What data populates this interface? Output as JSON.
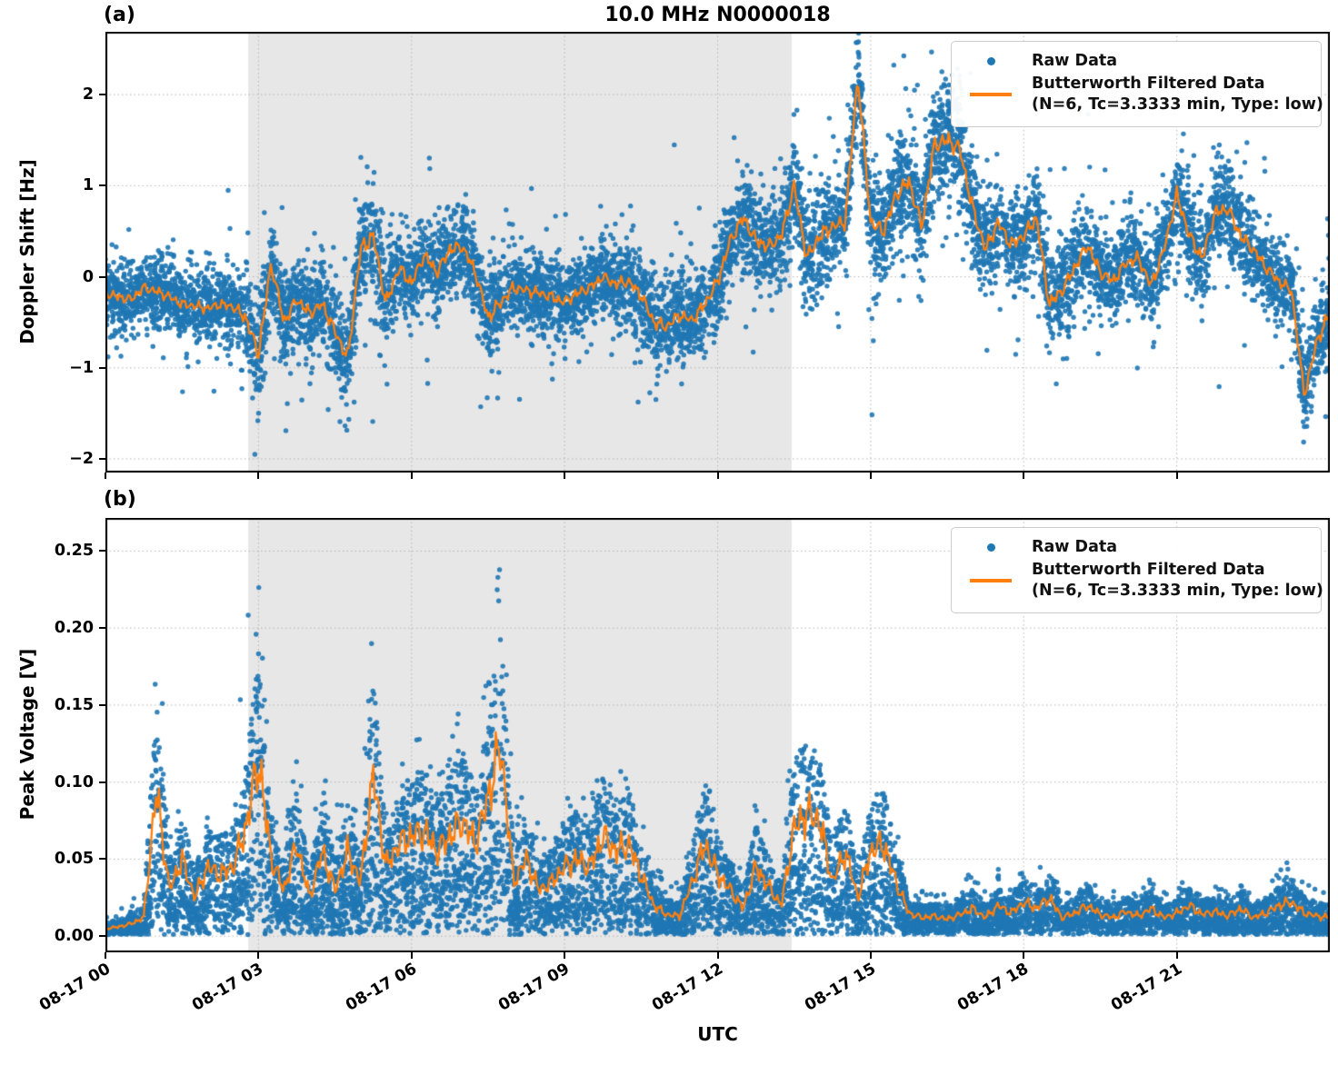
{
  "title": "10.0 MHz N0000018",
  "xlabel": "UTC",
  "panel_a": {
    "tag": "(a)"
  },
  "panel_b": {
    "tag": "(b)"
  },
  "legend": {
    "raw": "Raw Data",
    "filtered": "Butterworth Filtered Data",
    "filtered_params": "(N=6, Tc=3.3333 min, Type: low)"
  },
  "colors": {
    "raw": "#1f77b4",
    "filtered": "#ff7f0e",
    "shade": "#e7e7e7",
    "grid": "#b5b5b5",
    "spine": "#000000"
  },
  "chart_data": [
    {
      "type": "scatter",
      "panel": "a",
      "title": "10.0 MHz N0000018",
      "ylabel": "Doppler Shift [Hz]",
      "xlabel": "UTC",
      "grid": true,
      "legend_position": "upper right",
      "xlim_hours": [
        0,
        24
      ],
      "ylim": [
        -2.15,
        2.69
      ],
      "xticks": {
        "hours": [
          0,
          3,
          6,
          9,
          12,
          15,
          18,
          21
        ],
        "labels": [
          "08-17 00",
          "08-17 03",
          "08-17 06",
          "08-17 09",
          "08-17 12",
          "08-17 15",
          "08-17 18",
          "08-17 21"
        ]
      },
      "yticks": {
        "values": [
          -2,
          -1,
          0,
          1,
          2
        ],
        "labels": [
          "−2",
          "−1",
          "0",
          "1",
          "2"
        ]
      },
      "shaded_span_hours": [
        2.8,
        13.45
      ],
      "series": [
        {
          "name": "Raw Data",
          "style": "scatter"
        },
        {
          "name": "Butterworth Filtered Data (N=6, Tc=3.3333 min, Type: low)",
          "style": "line"
        }
      ],
      "x_start_hours": 0,
      "x_step_hours": 0.25,
      "filtered_y": [
        -0.18,
        -0.22,
        -0.25,
        -0.12,
        -0.16,
        -0.22,
        -0.3,
        -0.32,
        -0.35,
        -0.3,
        -0.33,
        -0.45,
        -0.85,
        0.15,
        -0.5,
        -0.25,
        -0.4,
        -0.3,
        -0.6,
        -0.9,
        0.3,
        0.45,
        -0.3,
        0.1,
        -0.07,
        0.24,
        0.05,
        0.3,
        0.33,
        0.05,
        -0.45,
        -0.28,
        -0.12,
        -0.15,
        -0.18,
        -0.22,
        -0.28,
        -0.18,
        -0.12,
        0.0,
        -0.08,
        -0.05,
        -0.2,
        -0.5,
        -0.55,
        -0.42,
        -0.48,
        -0.3,
        -0.05,
        0.4,
        0.65,
        0.4,
        0.33,
        0.45,
        1.0,
        0.2,
        0.45,
        0.55,
        0.6,
        2.2,
        0.6,
        0.5,
        0.9,
        1.05,
        0.55,
        1.45,
        1.5,
        1.4,
        0.75,
        0.3,
        0.6,
        0.35,
        0.45,
        0.65,
        -0.3,
        -0.15,
        0.1,
        0.35,
        0.05,
        -0.05,
        0.15,
        0.2,
        -0.1,
        0.3,
        0.9,
        0.45,
        0.2,
        0.7,
        0.75,
        0.45,
        0.3,
        0.1,
        -0.05,
        -0.15,
        -1.3,
        -0.7,
        -0.4
      ],
      "scatter_halfwidth": [
        0.35,
        0.35,
        0.35,
        0.35,
        0.35,
        0.35,
        0.35,
        0.35,
        0.35,
        0.35,
        0.38,
        0.5,
        0.55,
        0.55,
        0.5,
        0.45,
        0.45,
        0.45,
        0.5,
        0.55,
        0.6,
        0.6,
        0.55,
        0.5,
        0.45,
        0.45,
        0.45,
        0.45,
        0.45,
        0.45,
        0.5,
        0.5,
        0.45,
        0.4,
        0.4,
        0.4,
        0.4,
        0.4,
        0.4,
        0.4,
        0.42,
        0.42,
        0.45,
        0.45,
        0.45,
        0.45,
        0.45,
        0.45,
        0.5,
        0.5,
        0.5,
        0.5,
        0.5,
        0.5,
        0.55,
        0.55,
        0.55,
        0.55,
        0.5,
        0.5,
        0.55,
        0.55,
        0.55,
        0.55,
        0.6,
        0.65,
        0.65,
        0.6,
        0.55,
        0.5,
        0.5,
        0.5,
        0.5,
        0.5,
        0.5,
        0.5,
        0.45,
        0.45,
        0.45,
        0.45,
        0.45,
        0.45,
        0.45,
        0.45,
        0.5,
        0.5,
        0.5,
        0.5,
        0.5,
        0.5,
        0.45,
        0.45,
        0.4,
        0.4,
        0.45,
        0.5,
        0.5
      ]
    },
    {
      "type": "scatter",
      "panel": "b",
      "ylabel": "Peak Voltage [V]",
      "xlabel": "UTC",
      "grid": true,
      "legend_position": "upper right",
      "xlim_hours": [
        0,
        24
      ],
      "ylim": [
        -0.0105,
        0.2715
      ],
      "xticks": {
        "hours": [
          0,
          3,
          6,
          9,
          12,
          15,
          18,
          21
        ],
        "labels": [
          "08-17 00",
          "08-17 03",
          "08-17 06",
          "08-17 09",
          "08-17 12",
          "08-17 15",
          "08-17 18",
          "08-17 21"
        ]
      },
      "yticks": {
        "values": [
          0.0,
          0.05,
          0.1,
          0.15,
          0.2,
          0.25
        ],
        "labels": [
          "0.00",
          "0.05",
          "0.10",
          "0.15",
          "0.20",
          "0.25"
        ]
      },
      "shaded_span_hours": [
        2.8,
        13.45
      ],
      "series": [
        {
          "name": "Raw Data",
          "style": "scatter"
        },
        {
          "name": "Butterworth Filtered Data (N=6, Tc=3.3333 min, Type: low)",
          "style": "line"
        }
      ],
      "x_start_hours": 0,
      "x_step_hours": 0.25,
      "filtered_y": [
        0.005,
        0.006,
        0.008,
        0.012,
        0.095,
        0.03,
        0.05,
        0.025,
        0.045,
        0.04,
        0.045,
        0.07,
        0.115,
        0.05,
        0.03,
        0.06,
        0.025,
        0.055,
        0.03,
        0.055,
        0.035,
        0.105,
        0.045,
        0.06,
        0.065,
        0.068,
        0.055,
        0.065,
        0.075,
        0.06,
        0.09,
        0.125,
        0.035,
        0.05,
        0.03,
        0.035,
        0.045,
        0.05,
        0.045,
        0.065,
        0.055,
        0.06,
        0.04,
        0.02,
        0.014,
        0.013,
        0.035,
        0.06,
        0.04,
        0.03,
        0.018,
        0.045,
        0.032,
        0.02,
        0.07,
        0.08,
        0.075,
        0.035,
        0.055,
        0.025,
        0.055,
        0.06,
        0.035,
        0.015,
        0.012,
        0.013,
        0.011,
        0.014,
        0.018,
        0.012,
        0.02,
        0.015,
        0.022,
        0.018,
        0.025,
        0.012,
        0.015,
        0.02,
        0.014,
        0.012,
        0.016,
        0.013,
        0.018,
        0.012,
        0.015,
        0.02,
        0.014,
        0.016,
        0.013,
        0.018,
        0.012,
        0.015,
        0.02,
        0.022,
        0.015,
        0.013,
        0.012
      ],
      "scatter_upper": [
        0.018,
        0.018,
        0.02,
        0.04,
        0.225,
        0.07,
        0.09,
        0.05,
        0.08,
        0.07,
        0.08,
        0.21,
        0.24,
        0.1,
        0.07,
        0.12,
        0.06,
        0.13,
        0.08,
        0.12,
        0.09,
        0.21,
        0.1,
        0.12,
        0.13,
        0.13,
        0.11,
        0.12,
        0.17,
        0.12,
        0.18,
        0.255,
        0.08,
        0.11,
        0.07,
        0.08,
        0.09,
        0.1,
        0.09,
        0.13,
        0.11,
        0.12,
        0.09,
        0.05,
        0.035,
        0.035,
        0.07,
        0.105,
        0.08,
        0.06,
        0.04,
        0.09,
        0.07,
        0.05,
        0.155,
        0.12,
        0.115,
        0.07,
        0.1,
        0.055,
        0.08,
        0.075,
        0.07,
        0.035,
        0.03,
        0.03,
        0.028,
        0.04,
        0.04,
        0.03,
        0.045,
        0.035,
        0.05,
        0.045,
        0.045,
        0.03,
        0.035,
        0.04,
        0.032,
        0.03,
        0.035,
        0.03,
        0.04,
        0.03,
        0.035,
        0.04,
        0.032,
        0.035,
        0.03,
        0.035,
        0.028,
        0.032,
        0.045,
        0.05,
        0.04,
        0.032,
        0.03
      ]
    }
  ]
}
